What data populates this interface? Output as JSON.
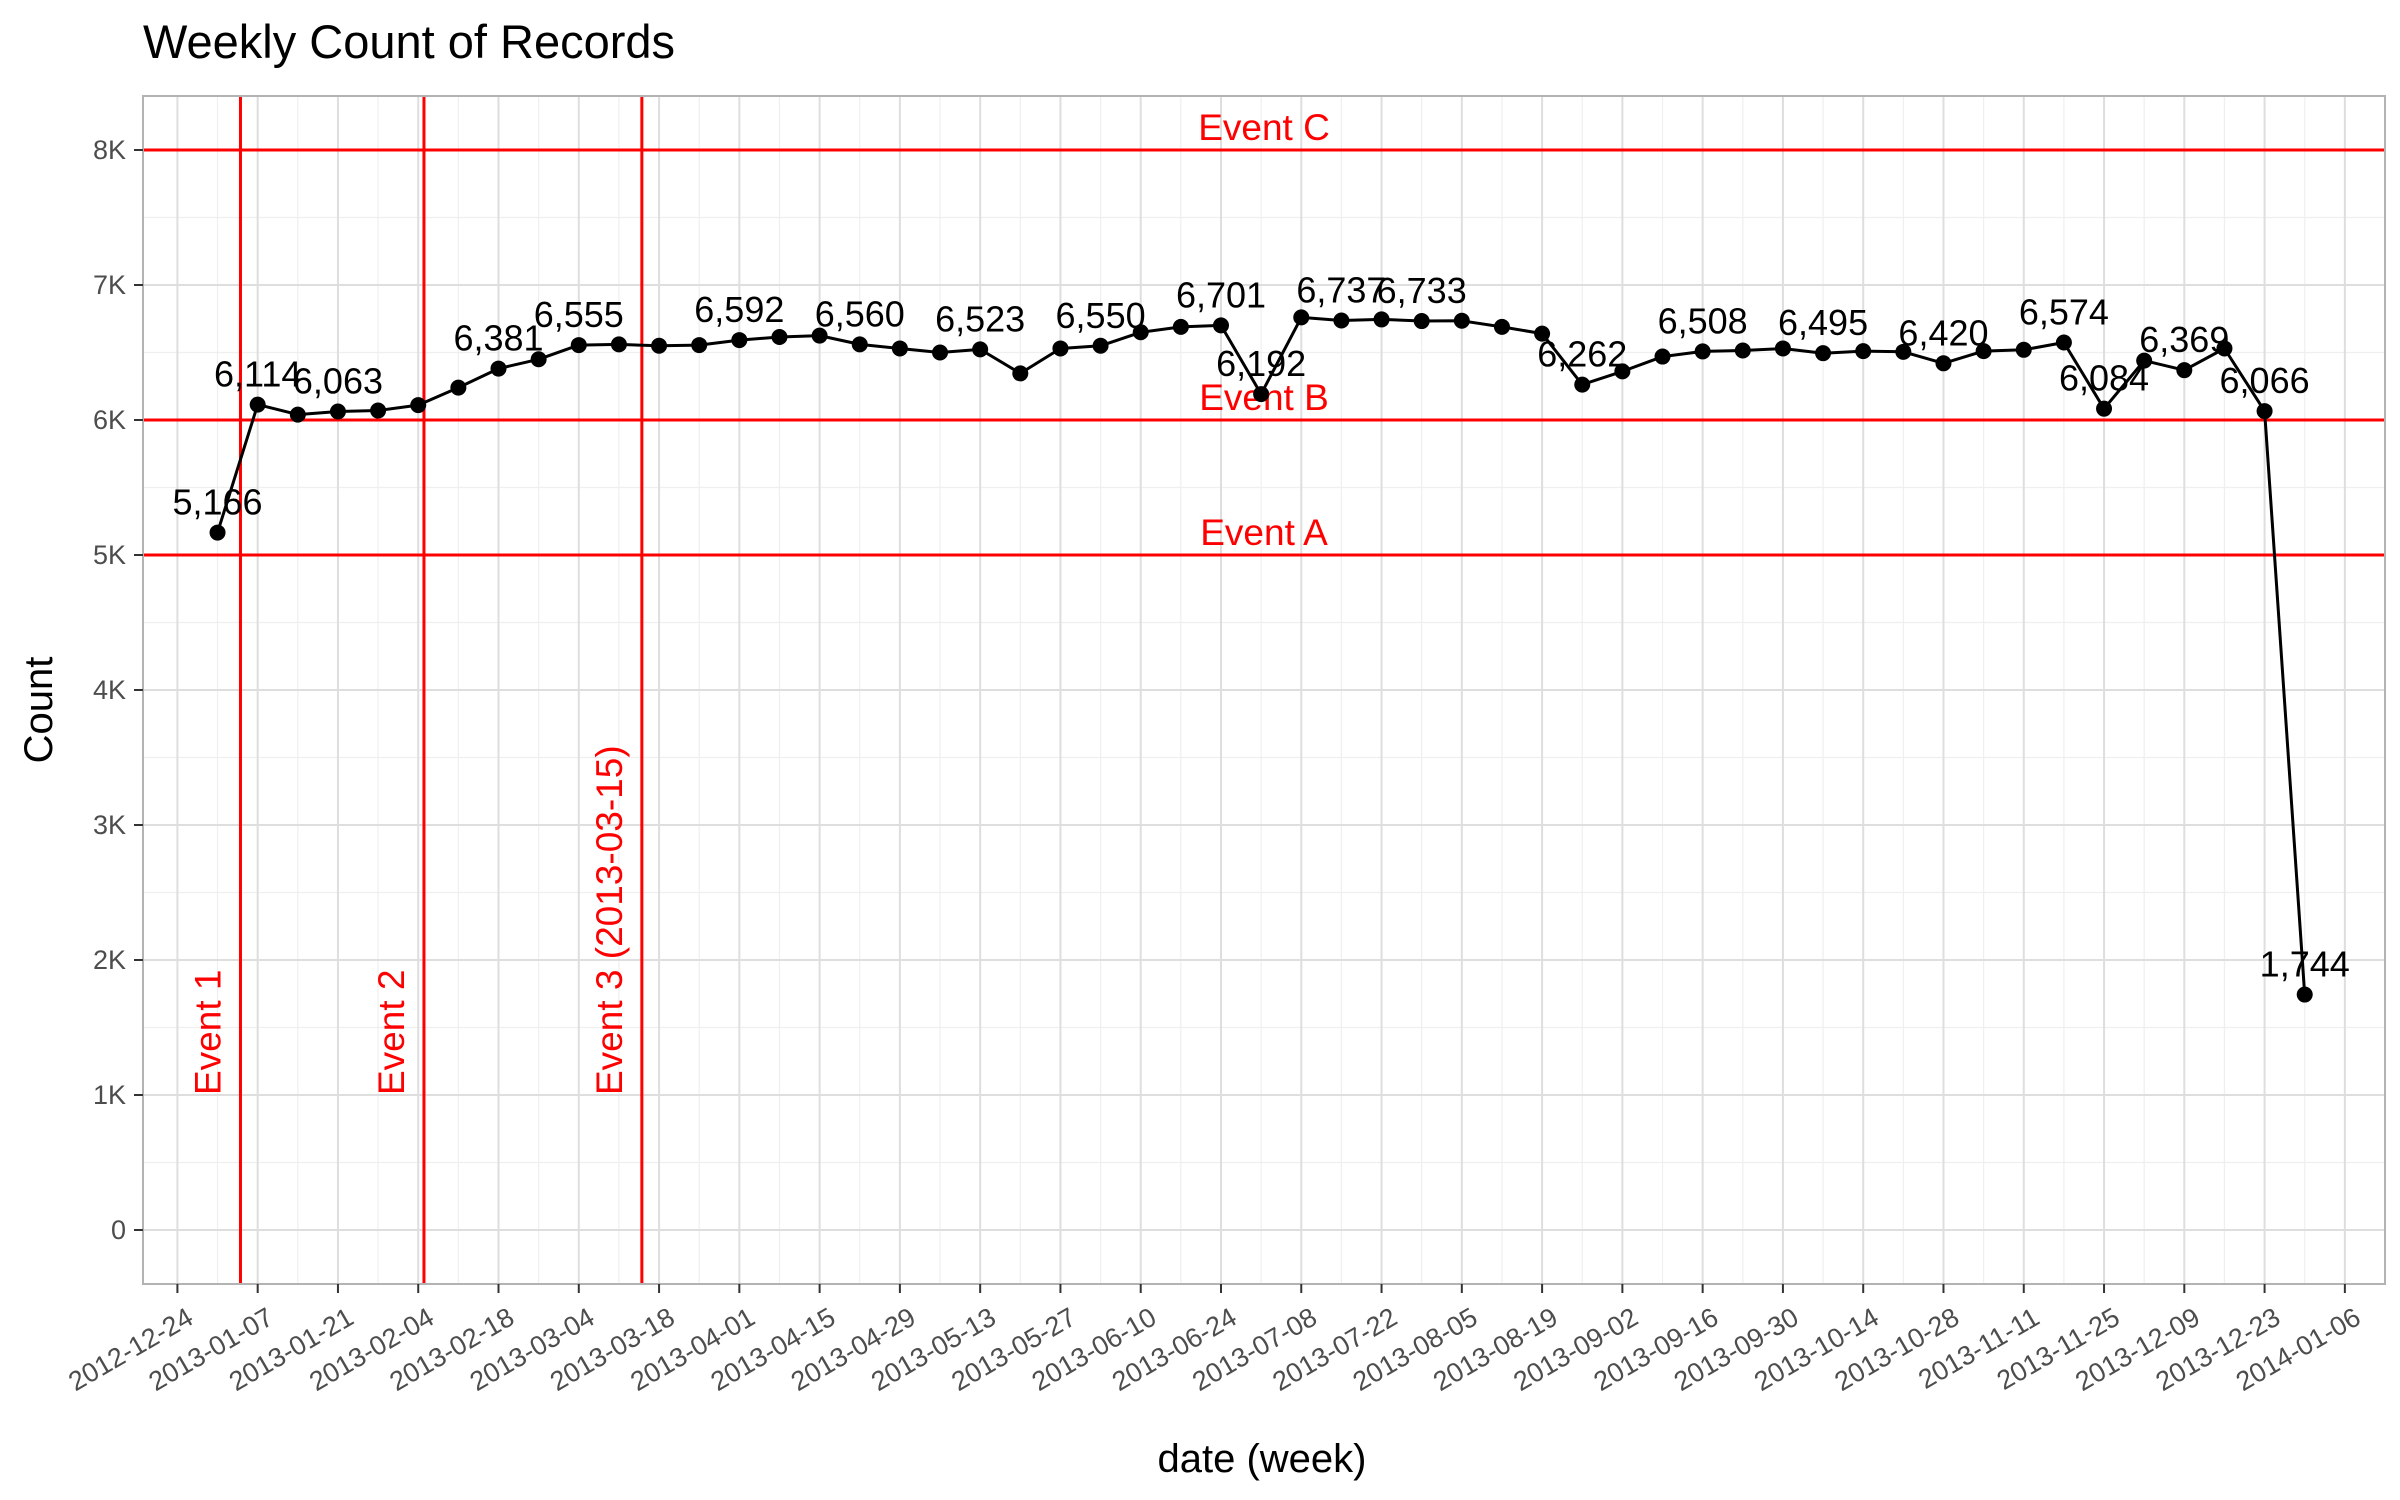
{
  "chart_data": {
    "type": "line",
    "title": "Weekly Count of Records",
    "xlabel": "date (week)",
    "ylabel": "Count",
    "xlim": [
      "2012-12-18",
      "2014-01-13"
    ],
    "ylim": [
      -400,
      8400
    ],
    "grid": true,
    "legend": "none",
    "x_ticks": [
      "2012-12-24",
      "2013-01-07",
      "2013-01-21",
      "2013-02-04",
      "2013-02-18",
      "2013-03-04",
      "2013-03-18",
      "2013-04-01",
      "2013-04-15",
      "2013-04-29",
      "2013-05-13",
      "2013-05-27",
      "2013-06-10",
      "2013-06-24",
      "2013-07-08",
      "2013-07-22",
      "2013-08-05",
      "2013-08-19",
      "2013-09-02",
      "2013-09-16",
      "2013-09-30",
      "2013-10-14",
      "2013-10-28",
      "2013-11-11",
      "2013-11-25",
      "2013-12-09",
      "2013-12-23",
      "2014-01-06"
    ],
    "y_ticks": [
      {
        "value": 0,
        "label": "0"
      },
      {
        "value": 1000,
        "label": "1K"
      },
      {
        "value": 2000,
        "label": "2K"
      },
      {
        "value": 3000,
        "label": "3K"
      },
      {
        "value": 4000,
        "label": "4K"
      },
      {
        "value": 5000,
        "label": "5K"
      },
      {
        "value": 6000,
        "label": "6K"
      },
      {
        "value": 7000,
        "label": "7K"
      },
      {
        "value": 8000,
        "label": "8K"
      }
    ],
    "series": [
      {
        "color": "#000000",
        "points": [
          {
            "x": "2012-12-31",
            "y": 5166,
            "label": "5,166"
          },
          {
            "x": "2013-01-07",
            "y": 6114,
            "label": "6,114"
          },
          {
            "x": "2013-01-14",
            "y": 6040
          },
          {
            "x": "2013-01-21",
            "y": 6063,
            "label": "6,063"
          },
          {
            "x": "2013-01-28",
            "y": 6070
          },
          {
            "x": "2013-02-04",
            "y": 6110
          },
          {
            "x": "2013-02-11",
            "y": 6240
          },
          {
            "x": "2013-02-18",
            "y": 6381,
            "label": "6,381"
          },
          {
            "x": "2013-02-25",
            "y": 6450
          },
          {
            "x": "2013-03-04",
            "y": 6555,
            "label": "6,555"
          },
          {
            "x": "2013-03-11",
            "y": 6560
          },
          {
            "x": "2013-03-18",
            "y": 6550
          },
          {
            "x": "2013-03-25",
            "y": 6555
          },
          {
            "x": "2013-04-01",
            "y": 6592,
            "label": "6,592"
          },
          {
            "x": "2013-04-08",
            "y": 6615
          },
          {
            "x": "2013-04-15",
            "y": 6625
          },
          {
            "x": "2013-04-22",
            "y": 6560,
            "label": "6,560"
          },
          {
            "x": "2013-04-29",
            "y": 6530
          },
          {
            "x": "2013-05-06",
            "y": 6500
          },
          {
            "x": "2013-05-13",
            "y": 6523,
            "label": "6,523"
          },
          {
            "x": "2013-05-20",
            "y": 6345
          },
          {
            "x": "2013-05-27",
            "y": 6530
          },
          {
            "x": "2013-06-03",
            "y": 6550,
            "label": "6,550"
          },
          {
            "x": "2013-06-10",
            "y": 6650
          },
          {
            "x": "2013-06-17",
            "y": 6690
          },
          {
            "x": "2013-06-24",
            "y": 6701,
            "label": "6,701"
          },
          {
            "x": "2013-07-01",
            "y": 6192,
            "label": "6,192"
          },
          {
            "x": "2013-07-08",
            "y": 6760
          },
          {
            "x": "2013-07-15",
            "y": 6737,
            "label": "6,737"
          },
          {
            "x": "2013-07-22",
            "y": 6745
          },
          {
            "x": "2013-07-29",
            "y": 6733,
            "label": "6,733"
          },
          {
            "x": "2013-08-05",
            "y": 6735
          },
          {
            "x": "2013-08-12",
            "y": 6690
          },
          {
            "x": "2013-08-19",
            "y": 6640
          },
          {
            "x": "2013-08-26",
            "y": 6262,
            "label": "6,262"
          },
          {
            "x": "2013-09-02",
            "y": 6360
          },
          {
            "x": "2013-09-09",
            "y": 6470
          },
          {
            "x": "2013-09-16",
            "y": 6508,
            "label": "6,508"
          },
          {
            "x": "2013-09-23",
            "y": 6515
          },
          {
            "x": "2013-09-30",
            "y": 6530
          },
          {
            "x": "2013-10-07",
            "y": 6495,
            "label": "6,495"
          },
          {
            "x": "2013-10-14",
            "y": 6510
          },
          {
            "x": "2013-10-21",
            "y": 6505
          },
          {
            "x": "2013-10-28",
            "y": 6420,
            "label": "6,420"
          },
          {
            "x": "2013-11-04",
            "y": 6510
          },
          {
            "x": "2013-11-11",
            "y": 6520
          },
          {
            "x": "2013-11-18",
            "y": 6574,
            "label": "6,574"
          },
          {
            "x": "2013-11-25",
            "y": 6084,
            "label": "6,084"
          },
          {
            "x": "2013-12-02",
            "y": 6440
          },
          {
            "x": "2013-12-09",
            "y": 6369,
            "label": "6,369"
          },
          {
            "x": "2013-12-16",
            "y": 6530
          },
          {
            "x": "2013-12-23",
            "y": 6066,
            "label": "6,066"
          },
          {
            "x": "2013-12-30",
            "y": 1744,
            "label": "1,744"
          }
        ]
      }
    ],
    "vertical_lines": [
      {
        "x": "2013-01-04",
        "label": "Event 1",
        "color": "#ff0000"
      },
      {
        "x": "2013-02-05",
        "label": "Event 2",
        "color": "#ff0000"
      },
      {
        "x": "2013-03-15",
        "label": "Event 3 (2013-03-15)",
        "color": "#ff0000"
      }
    ],
    "horizontal_lines": [
      {
        "y": 5000,
        "label": "Event A",
        "color": "#ff0000"
      },
      {
        "y": 6000,
        "label": "Event B",
        "color": "#ff0000"
      },
      {
        "y": 8000,
        "label": "Event C",
        "color": "#ff0000"
      }
    ],
    "colors": {
      "series": "#000000",
      "events": "#ff0000",
      "grid_major": "#dedede",
      "grid_minor": "#efefef",
      "panel_border": "#b3b3b3",
      "tick_text": "#4d4d4d"
    }
  }
}
